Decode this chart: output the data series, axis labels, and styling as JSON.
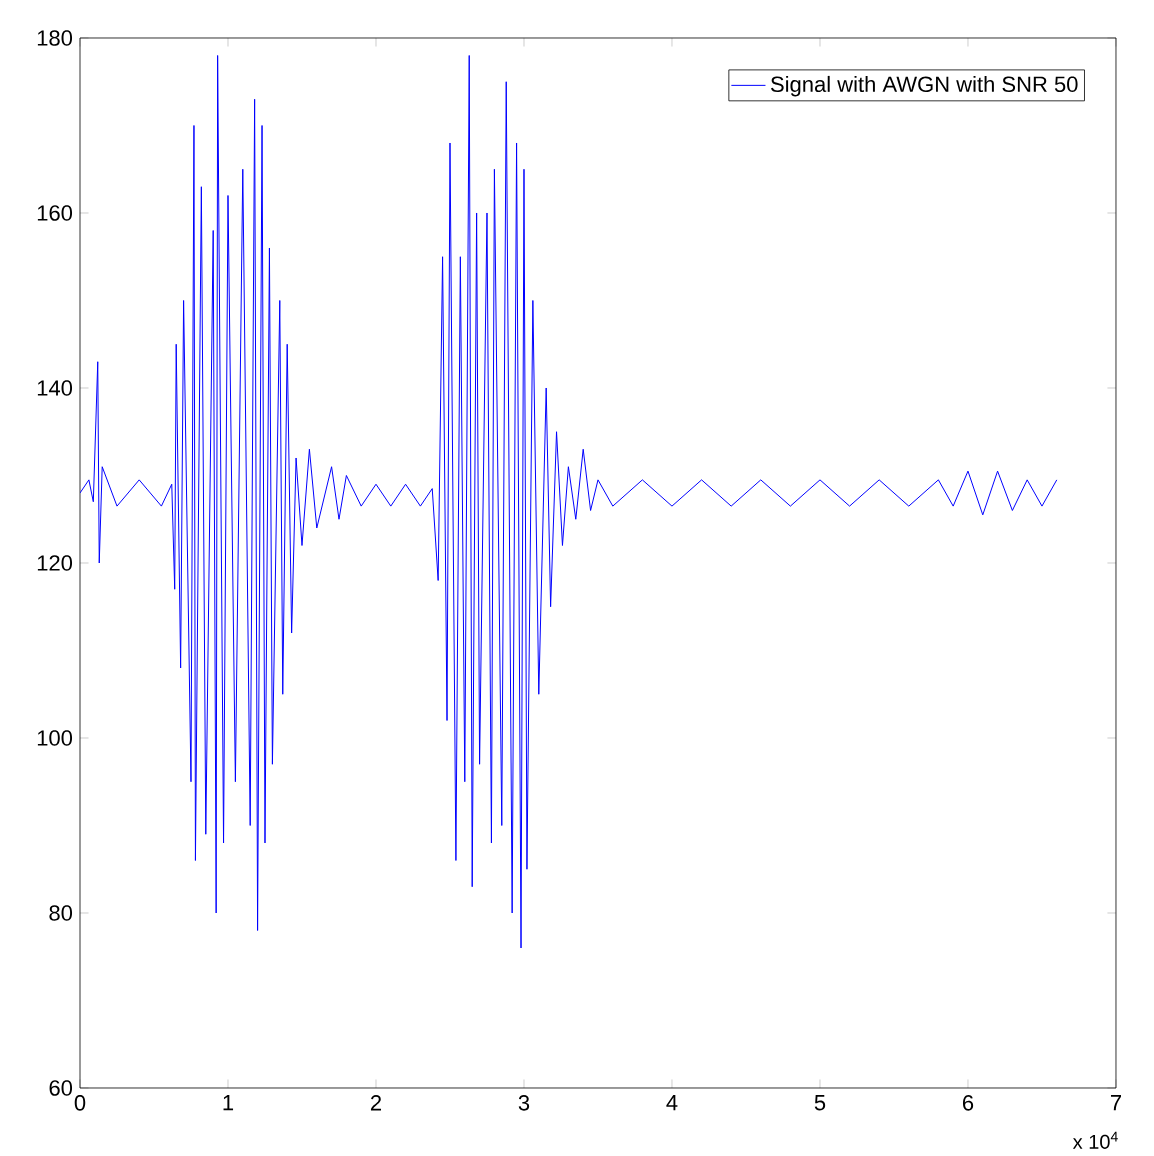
{
  "chart_data": {
    "type": "line",
    "x": [
      0,
      0.06,
      0.09,
      0.12,
      0.13,
      0.15,
      0.25,
      0.4,
      0.55,
      0.62,
      0.64,
      0.65,
      0.68,
      0.7,
      0.75,
      0.77,
      0.78,
      0.82,
      0.85,
      0.9,
      0.92,
      0.93,
      0.97,
      1.0,
      1.05,
      1.1,
      1.15,
      1.18,
      1.2,
      1.23,
      1.25,
      1.28,
      1.3,
      1.35,
      1.37,
      1.4,
      1.43,
      1.46,
      1.5,
      1.55,
      1.6,
      1.7,
      1.75,
      1.8,
      1.9,
      2.0,
      2.1,
      2.2,
      2.3,
      2.38,
      2.42,
      2.45,
      2.48,
      2.5,
      2.54,
      2.57,
      2.6,
      2.63,
      2.65,
      2.68,
      2.7,
      2.75,
      2.78,
      2.8,
      2.85,
      2.88,
      2.92,
      2.95,
      2.98,
      3.0,
      3.02,
      3.06,
      3.1,
      3.15,
      3.18,
      3.22,
      3.26,
      3.3,
      3.35,
      3.4,
      3.45,
      3.5,
      3.6,
      3.8,
      4.0,
      4.2,
      4.4,
      4.6,
      4.8,
      5.0,
      5.2,
      5.4,
      5.6,
      5.8,
      5.9,
      6.0,
      6.1,
      6.2,
      6.3,
      6.4,
      6.5,
      6.6
    ],
    "series": [
      {
        "name": "Signal with AWGN with SNR 50",
        "color": "#0000ff",
        "values": [
          128,
          129.5,
          127,
          143,
          120,
          131,
          126.5,
          129.5,
          126.5,
          129,
          117,
          145,
          108,
          150,
          95,
          170,
          86,
          163,
          89,
          158,
          80,
          178,
          88,
          162,
          95,
          165,
          90,
          173,
          78,
          170,
          88,
          156,
          97,
          150,
          105,
          145,
          112,
          132,
          122,
          133,
          124,
          131,
          125,
          130,
          126.5,
          129,
          126.5,
          129,
          126.5,
          128.5,
          118,
          155,
          102,
          168,
          86,
          155,
          95,
          178,
          83,
          160,
          97,
          160,
          88,
          165,
          90,
          175,
          80,
          168,
          76,
          165,
          85,
          150,
          105,
          140,
          115,
          135,
          122,
          131,
          125,
          133,
          126,
          129.5,
          126.5,
          129.5,
          126.5,
          129.5,
          126.5,
          129.5,
          126.5,
          129.5,
          126.5,
          129.5,
          126.5,
          129.5,
          126.5,
          130.5,
          125.5,
          130.5,
          126,
          129.5,
          126.5,
          129.5
        ]
      }
    ],
    "xlim": [
      0,
      7
    ],
    "xticks": [
      0,
      1,
      2,
      3,
      4,
      5,
      6,
      7
    ],
    "ylim": [
      60,
      180
    ],
    "yticks": [
      60,
      80,
      100,
      120,
      140,
      160,
      180
    ],
    "annotations": [
      "x 10$^{4}$"
    ],
    "legend": "top right",
    "grid": false,
    "marker": "none",
    "line_style": "solid"
  }
}
